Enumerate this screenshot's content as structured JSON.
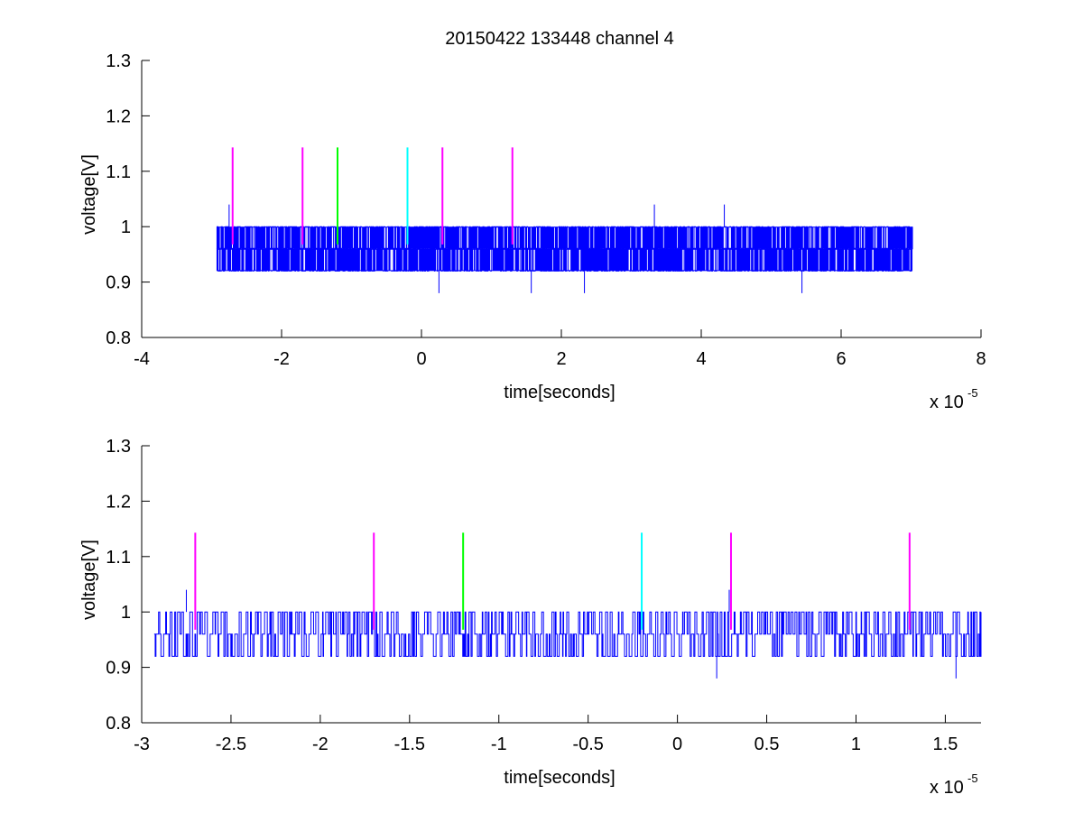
{
  "figure_title": "20150422 133448 channel 4",
  "chart_data": [
    {
      "type": "line",
      "title": "20150422 133448 channel 4",
      "xlabel": "time[seconds]",
      "ylabel": "voltage[V]",
      "x_multiplier_label": "x 10",
      "x_multiplier_exponent": "-5",
      "xlim": [
        -4,
        8
      ],
      "ylim": [
        0.8,
        1.3
      ],
      "x_ticks": [
        -4,
        -2,
        0,
        2,
        4,
        6,
        8
      ],
      "x_tick_labels": [
        "-4",
        "-2",
        "0",
        "2",
        "4",
        "6",
        "8"
      ],
      "y_ticks": [
        0.8,
        0.9,
        1.0,
        1.1,
        1.2,
        1.3
      ],
      "y_tick_labels": [
        "0.8",
        "0.9",
        "1",
        "1.1",
        "1.2",
        "1.3"
      ],
      "grid": false,
      "signal": {
        "color": "#0000ff",
        "x_range": [
          -2.93,
          7.02
        ],
        "levels": [
          0.92,
          0.96,
          1.0
        ],
        "spikes": [
          {
            "x": -2.75,
            "y": 1.04
          },
          {
            "x": 0.25,
            "y": 0.88
          },
          {
            "x": 1.57,
            "y": 0.88
          },
          {
            "x": 2.33,
            "y": 0.88
          },
          {
            "x": 3.33,
            "y": 1.04
          },
          {
            "x": 4.33,
            "y": 1.04
          },
          {
            "x": 5.44,
            "y": 0.88
          }
        ]
      },
      "markers": [
        {
          "x": -2.7,
          "y_low": 0.968,
          "y_high": 1.143,
          "color": "#ff00ff"
        },
        {
          "x": -1.7,
          "y_low": 0.968,
          "y_high": 1.143,
          "color": "#ff00ff"
        },
        {
          "x": -1.2,
          "y_low": 0.968,
          "y_high": 1.143,
          "color": "#00ff00"
        },
        {
          "x": -0.2,
          "y_low": 0.968,
          "y_high": 1.143,
          "color": "#00ffff"
        },
        {
          "x": 0.3,
          "y_low": 0.968,
          "y_high": 1.143,
          "color": "#ff00ff"
        },
        {
          "x": 1.3,
          "y_low": 0.968,
          "y_high": 1.143,
          "color": "#ff00ff"
        }
      ]
    },
    {
      "type": "line",
      "title": "",
      "xlabel": "time[seconds]",
      "ylabel": "voltage[V]",
      "x_multiplier_label": "x 10",
      "x_multiplier_exponent": "-5",
      "xlim": [
        -3.0,
        1.7
      ],
      "ylim": [
        0.8,
        1.3
      ],
      "x_ticks": [
        -3,
        -2.5,
        -2,
        -1.5,
        -1,
        -0.5,
        0,
        0.5,
        1,
        1.5
      ],
      "x_tick_labels": [
        "-3",
        "-2.5",
        "-2",
        "-1.5",
        "-1",
        "-0.5",
        "0",
        "0.5",
        "1",
        "1.5"
      ],
      "y_ticks": [
        0.8,
        0.9,
        1.0,
        1.1,
        1.2,
        1.3
      ],
      "y_tick_labels": [
        "0.8",
        "0.9",
        "1",
        "1.1",
        "1.2",
        "1.3"
      ],
      "grid": false,
      "signal": {
        "color": "#0000ff",
        "x_range": [
          -2.93,
          1.7
        ],
        "levels": [
          0.92,
          0.96,
          1.0
        ],
        "spikes": [
          {
            "x": -2.75,
            "y": 1.04
          },
          {
            "x": 0.22,
            "y": 0.88
          },
          {
            "x": 0.29,
            "y": 1.04
          },
          {
            "x": 1.56,
            "y": 0.88
          }
        ]
      },
      "markers": [
        {
          "x": -2.7,
          "y_low": 0.968,
          "y_high": 1.143,
          "color": "#ff00ff"
        },
        {
          "x": -1.7,
          "y_low": 0.968,
          "y_high": 1.143,
          "color": "#ff00ff"
        },
        {
          "x": -1.2,
          "y_low": 0.968,
          "y_high": 1.143,
          "color": "#00ff00"
        },
        {
          "x": -0.2,
          "y_low": 0.968,
          "y_high": 1.143,
          "color": "#00ffff"
        },
        {
          "x": 0.3,
          "y_low": 0.968,
          "y_high": 1.143,
          "color": "#ff00ff"
        },
        {
          "x": 1.3,
          "y_low": 0.968,
          "y_high": 1.143,
          "color": "#ff00ff"
        }
      ]
    }
  ]
}
